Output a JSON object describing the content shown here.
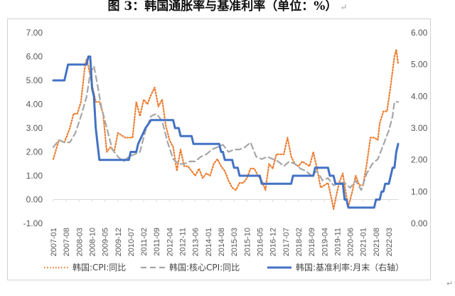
{
  "page": {
    "title": "图 3：韩国通胀率与基准利率（单位：%）",
    "paragraph_mark": "↵",
    "end_mark": "↵"
  },
  "chart_data": {
    "type": "line",
    "title": "图 3：韩国通胀率与基准利率（单位：%）",
    "x_tick_labels": [
      "2007-01",
      "2007-08",
      "2008-03",
      "2008-10",
      "2009-05",
      "2009-12",
      "2010-07",
      "2011-02",
      "2011-09",
      "2012-04",
      "2012-11",
      "2013-06",
      "2014-01",
      "2014-08",
      "2015-03",
      "2015-10",
      "2016-05",
      "2016-12",
      "2017-07",
      "2018-02",
      "2018-09",
      "2019-04",
      "2019-11",
      "2020-06",
      "2021-01",
      "2021-08",
      "2022-03"
    ],
    "x_range": [
      "2007-01",
      "2022-08"
    ],
    "y_left": {
      "ticks": [
        "7.00",
        "6.00",
        "5.00",
        "4.00",
        "3.00",
        "2.00",
        "1.00",
        "0.00",
        "-1.00"
      ],
      "ylim": [
        -1,
        7
      ]
    },
    "y_right": {
      "ticks": [
        "6.00",
        "5.00",
        "4.00",
        "3.00",
        "2.00",
        "1.00",
        "0.00"
      ],
      "ylim": [
        0,
        6
      ]
    },
    "grid": false,
    "legend_position": "bottom",
    "series": [
      {
        "name": "韩国:CPI:同比",
        "axis": "left",
        "color": "#ED7D31",
        "style": "dotted",
        "points": [
          [
            "2007-01",
            1.7
          ],
          [
            "2007-04",
            2.5
          ],
          [
            "2007-07",
            2.4
          ],
          [
            "2007-10",
            3.0
          ],
          [
            "2007-12",
            3.6
          ],
          [
            "2008-02",
            3.6
          ],
          [
            "2008-04",
            4.1
          ],
          [
            "2008-06",
            5.5
          ],
          [
            "2008-07",
            5.9
          ],
          [
            "2008-08",
            5.6
          ],
          [
            "2008-10",
            4.8
          ],
          [
            "2008-12",
            4.1
          ],
          [
            "2009-02",
            4.1
          ],
          [
            "2009-04",
            3.6
          ],
          [
            "2009-06",
            2.0
          ],
          [
            "2009-08",
            2.2
          ],
          [
            "2009-10",
            2.0
          ],
          [
            "2009-12",
            2.8
          ],
          [
            "2010-02",
            2.7
          ],
          [
            "2010-04",
            2.6
          ],
          [
            "2010-06",
            2.6
          ],
          [
            "2010-08",
            2.6
          ],
          [
            "2010-10",
            4.1
          ],
          [
            "2010-12",
            3.5
          ],
          [
            "2011-02",
            4.2
          ],
          [
            "2011-04",
            4.0
          ],
          [
            "2011-06",
            4.4
          ],
          [
            "2011-08",
            4.7
          ],
          [
            "2011-10",
            3.9
          ],
          [
            "2011-12",
            4.2
          ],
          [
            "2012-02",
            3.1
          ],
          [
            "2012-04",
            2.5
          ],
          [
            "2012-06",
            2.2
          ],
          [
            "2012-08",
            1.2
          ],
          [
            "2012-10",
            2.1
          ],
          [
            "2012-12",
            1.4
          ],
          [
            "2013-02",
            1.4
          ],
          [
            "2013-04",
            1.2
          ],
          [
            "2013-06",
            1.0
          ],
          [
            "2013-08",
            1.3
          ],
          [
            "2013-10",
            0.9
          ],
          [
            "2013-12",
            1.1
          ],
          [
            "2014-02",
            1.0
          ],
          [
            "2014-04",
            1.5
          ],
          [
            "2014-06",
            1.7
          ],
          [
            "2014-08",
            1.4
          ],
          [
            "2014-10",
            1.2
          ],
          [
            "2014-12",
            0.8
          ],
          [
            "2015-02",
            0.5
          ],
          [
            "2015-04",
            0.4
          ],
          [
            "2015-06",
            0.7
          ],
          [
            "2015-08",
            0.7
          ],
          [
            "2015-10",
            0.9
          ],
          [
            "2015-12",
            1.3
          ],
          [
            "2016-02",
            1.3
          ],
          [
            "2016-04",
            1.0
          ],
          [
            "2016-06",
            0.8
          ],
          [
            "2016-08",
            0.4
          ],
          [
            "2016-10",
            1.5
          ],
          [
            "2016-12",
            1.3
          ],
          [
            "2017-02",
            1.9
          ],
          [
            "2017-04",
            1.9
          ],
          [
            "2017-06",
            1.9
          ],
          [
            "2017-08",
            2.6
          ],
          [
            "2017-10",
            1.8
          ],
          [
            "2017-12",
            1.5
          ],
          [
            "2018-02",
            1.4
          ],
          [
            "2018-04",
            1.6
          ],
          [
            "2018-06",
            1.5
          ],
          [
            "2018-08",
            1.4
          ],
          [
            "2018-10",
            2.0
          ],
          [
            "2018-12",
            1.3
          ],
          [
            "2019-02",
            0.5
          ],
          [
            "2019-04",
            0.6
          ],
          [
            "2019-06",
            0.7
          ],
          [
            "2019-08",
            0.0
          ],
          [
            "2019-09",
            -0.4
          ],
          [
            "2019-10",
            0.0
          ],
          [
            "2019-12",
            0.7
          ],
          [
            "2020-02",
            1.1
          ],
          [
            "2020-04",
            0.1
          ],
          [
            "2020-05",
            -0.3
          ],
          [
            "2020-07",
            0.3
          ],
          [
            "2020-09",
            1.0
          ],
          [
            "2020-11",
            0.6
          ],
          [
            "2021-01",
            0.6
          ],
          [
            "2021-03",
            1.5
          ],
          [
            "2021-05",
            2.6
          ],
          [
            "2021-07",
            2.6
          ],
          [
            "2021-09",
            2.5
          ],
          [
            "2021-10",
            3.2
          ],
          [
            "2021-12",
            3.7
          ],
          [
            "2022-02",
            3.7
          ],
          [
            "2022-04",
            4.8
          ],
          [
            "2022-06",
            6.0
          ],
          [
            "2022-07",
            6.3
          ],
          [
            "2022-08",
            5.7
          ]
        ]
      },
      {
        "name": "韩国:核心CPI:同比",
        "axis": "left",
        "color": "#A6A6A6",
        "style": "dashed",
        "points": [
          [
            "2007-01",
            2.2
          ],
          [
            "2007-04",
            2.5
          ],
          [
            "2007-07",
            2.4
          ],
          [
            "2007-10",
            2.4
          ],
          [
            "2008-01",
            2.8
          ],
          [
            "2008-04",
            3.5
          ],
          [
            "2008-07",
            4.3
          ],
          [
            "2008-09",
            5.3
          ],
          [
            "2008-11",
            5.6
          ],
          [
            "2009-01",
            4.8
          ],
          [
            "2009-03",
            3.9
          ],
          [
            "2009-06",
            3.0
          ],
          [
            "2009-09",
            2.1
          ],
          [
            "2009-12",
            1.8
          ],
          [
            "2010-03",
            1.6
          ],
          [
            "2010-06",
            1.8
          ],
          [
            "2010-09",
            1.9
          ],
          [
            "2010-12",
            2.0
          ],
          [
            "2011-03",
            2.9
          ],
          [
            "2011-06",
            3.5
          ],
          [
            "2011-09",
            3.6
          ],
          [
            "2011-12",
            3.3
          ],
          [
            "2012-03",
            2.4
          ],
          [
            "2012-06",
            1.7
          ],
          [
            "2012-09",
            1.5
          ],
          [
            "2012-12",
            1.5
          ],
          [
            "2013-03",
            1.6
          ],
          [
            "2013-06",
            1.6
          ],
          [
            "2013-09",
            1.8
          ],
          [
            "2013-12",
            1.9
          ],
          [
            "2014-03",
            2.1
          ],
          [
            "2014-06",
            2.2
          ],
          [
            "2014-09",
            2.3
          ],
          [
            "2014-12",
            2.0
          ],
          [
            "2015-03",
            2.1
          ],
          [
            "2015-06",
            2.1
          ],
          [
            "2015-09",
            2.2
          ],
          [
            "2015-12",
            2.4
          ],
          [
            "2016-03",
            1.8
          ],
          [
            "2016-06",
            1.7
          ],
          [
            "2016-09",
            1.8
          ],
          [
            "2016-12",
            1.7
          ],
          [
            "2017-03",
            1.6
          ],
          [
            "2017-06",
            1.4
          ],
          [
            "2017-09",
            1.6
          ],
          [
            "2017-12",
            1.5
          ],
          [
            "2018-03",
            1.3
          ],
          [
            "2018-06",
            1.2
          ],
          [
            "2018-09",
            1.0
          ],
          [
            "2018-12",
            1.2
          ],
          [
            "2019-03",
            0.8
          ],
          [
            "2019-06",
            0.9
          ],
          [
            "2019-09",
            0.6
          ],
          [
            "2019-12",
            0.7
          ],
          [
            "2020-03",
            0.7
          ],
          [
            "2020-06",
            0.5
          ],
          [
            "2020-09",
            0.8
          ],
          [
            "2020-12",
            0.4
          ],
          [
            "2021-03",
            1.1
          ],
          [
            "2021-06",
            1.5
          ],
          [
            "2021-09",
            1.7
          ],
          [
            "2021-12",
            2.3
          ],
          [
            "2022-03",
            2.9
          ],
          [
            "2022-05",
            3.5
          ],
          [
            "2022-06",
            4.1
          ],
          [
            "2022-08",
            4.1
          ]
        ]
      },
      {
        "name": "韩国:基准利率:月末（右轴）",
        "axis": "right",
        "color": "#4472C4",
        "style": "solid",
        "points": [
          [
            "2007-01",
            4.5
          ],
          [
            "2007-07",
            4.5
          ],
          [
            "2007-08",
            4.75
          ],
          [
            "2007-09",
            5.0
          ],
          [
            "2008-07",
            5.0
          ],
          [
            "2008-08",
            5.25
          ],
          [
            "2008-09",
            5.25
          ],
          [
            "2008-10",
            4.25
          ],
          [
            "2008-11",
            4.0
          ],
          [
            "2008-12",
            3.0
          ],
          [
            "2009-01",
            2.5
          ],
          [
            "2009-02",
            2.0
          ],
          [
            "2010-06",
            2.0
          ],
          [
            "2010-07",
            2.25
          ],
          [
            "2010-10",
            2.25
          ],
          [
            "2010-11",
            2.5
          ],
          [
            "2011-01",
            2.75
          ],
          [
            "2011-03",
            3.0
          ],
          [
            "2011-06",
            3.25
          ],
          [
            "2012-06",
            3.25
          ],
          [
            "2012-07",
            3.0
          ],
          [
            "2012-09",
            3.0
          ],
          [
            "2012-10",
            2.75
          ],
          [
            "2013-04",
            2.75
          ],
          [
            "2013-05",
            2.5
          ],
          [
            "2014-07",
            2.5
          ],
          [
            "2014-08",
            2.25
          ],
          [
            "2014-09",
            2.25
          ],
          [
            "2014-10",
            2.0
          ],
          [
            "2015-02",
            2.0
          ],
          [
            "2015-03",
            1.75
          ],
          [
            "2015-05",
            1.75
          ],
          [
            "2015-06",
            1.5
          ],
          [
            "2016-05",
            1.5
          ],
          [
            "2016-06",
            1.25
          ],
          [
            "2017-10",
            1.25
          ],
          [
            "2017-11",
            1.5
          ],
          [
            "2018-10",
            1.5
          ],
          [
            "2018-11",
            1.75
          ],
          [
            "2019-06",
            1.75
          ],
          [
            "2019-07",
            1.5
          ],
          [
            "2019-09",
            1.5
          ],
          [
            "2019-10",
            1.25
          ],
          [
            "2020-02",
            1.25
          ],
          [
            "2020-03",
            0.75
          ],
          [
            "2020-04",
            0.75
          ],
          [
            "2020-05",
            0.5
          ],
          [
            "2021-07",
            0.5
          ],
          [
            "2021-08",
            0.75
          ],
          [
            "2021-10",
            0.75
          ],
          [
            "2021-11",
            1.0
          ],
          [
            "2021-12",
            1.0
          ],
          [
            "2022-01",
            1.25
          ],
          [
            "2022-03",
            1.25
          ],
          [
            "2022-04",
            1.5
          ],
          [
            "2022-05",
            1.75
          ],
          [
            "2022-06",
            1.75
          ],
          [
            "2022-07",
            2.25
          ],
          [
            "2022-08",
            2.5
          ]
        ]
      }
    ]
  }
}
